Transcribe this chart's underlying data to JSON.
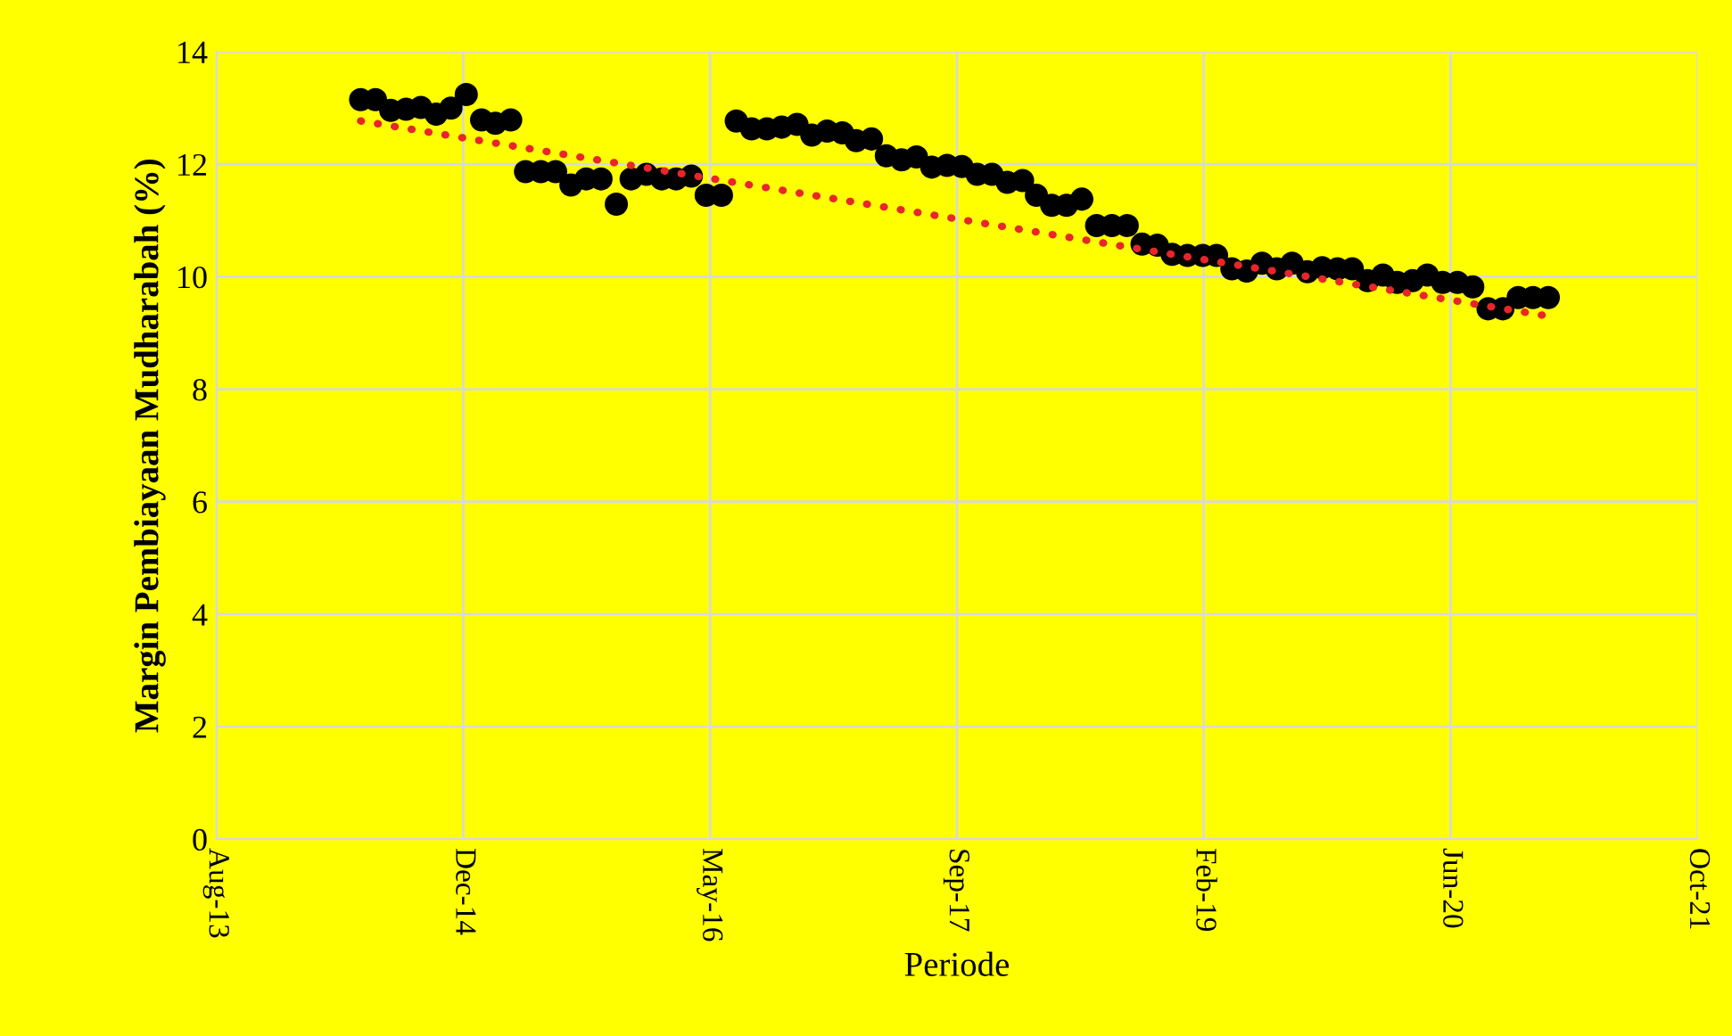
{
  "chart_data": {
    "type": "scatter",
    "xlabel": "Periode",
    "ylabel": "Margin Pembiayaan Mudharabah (%)",
    "x": [
      "2014-05-31",
      "2014-06-30",
      "2014-07-31",
      "2014-08-31",
      "2014-09-30",
      "2014-10-31",
      "2014-11-30",
      "2014-12-31",
      "2015-01-31",
      "2015-02-28",
      "2015-03-31",
      "2015-04-30",
      "2015-05-31",
      "2015-06-30",
      "2015-07-31",
      "2015-08-31",
      "2015-09-30",
      "2015-10-31",
      "2015-11-30",
      "2015-12-31",
      "2016-01-31",
      "2016-02-29",
      "2016-03-31",
      "2016-04-30",
      "2016-05-31",
      "2016-06-30",
      "2016-07-31",
      "2016-08-31",
      "2016-09-30",
      "2016-10-31",
      "2016-11-30",
      "2016-12-31",
      "2017-01-31",
      "2017-02-28",
      "2017-03-31",
      "2017-04-30",
      "2017-05-31",
      "2017-06-30",
      "2017-07-31",
      "2017-08-31",
      "2017-09-30",
      "2017-10-31",
      "2017-11-30",
      "2017-12-31",
      "2018-01-31",
      "2018-02-28",
      "2018-03-31",
      "2018-04-30",
      "2018-05-31",
      "2018-06-30",
      "2018-07-31",
      "2018-08-31",
      "2018-09-30",
      "2018-10-31",
      "2018-11-30",
      "2018-12-31",
      "2019-01-31",
      "2019-02-28",
      "2019-03-31",
      "2019-04-30",
      "2019-05-31",
      "2019-06-30",
      "2019-07-31",
      "2019-08-31",
      "2019-09-30",
      "2019-10-31",
      "2019-11-30",
      "2019-12-31",
      "2020-01-31",
      "2020-02-29",
      "2020-03-31",
      "2020-04-30",
      "2020-05-31",
      "2020-06-30",
      "2020-07-31",
      "2020-08-31",
      "2020-09-30",
      "2020-10-31",
      "2020-11-30",
      "2020-12-31"
    ],
    "series": [
      {
        "color": "#000000",
        "marker": "circle",
        "values": [
          13.15,
          13.15,
          12.96,
          12.98,
          13.01,
          12.89,
          13.0,
          13.24,
          12.79,
          12.73,
          12.79,
          11.87,
          11.87,
          11.87,
          11.63,
          11.74,
          11.74,
          11.29,
          11.74,
          11.82,
          11.74,
          11.74,
          11.79,
          11.45,
          11.45,
          12.77,
          12.63,
          12.63,
          12.66,
          12.71,
          12.52,
          12.59,
          12.56,
          12.42,
          12.45,
          12.15,
          12.08,
          12.13,
          11.95,
          11.98,
          11.96,
          11.82,
          11.82,
          11.68,
          11.71,
          11.45,
          11.27,
          11.27,
          11.38,
          10.91,
          10.91,
          10.91,
          10.58,
          10.56,
          10.4,
          10.38,
          10.38,
          10.38,
          10.14,
          10.1,
          10.24,
          10.14,
          10.24,
          10.09,
          10.16,
          10.14,
          10.14,
          9.93,
          10.03,
          9.9,
          9.93,
          10.03,
          9.9,
          9.9,
          9.82,
          9.43,
          9.43,
          9.63,
          9.63,
          9.63
        ]
      },
      {
        "type": "line",
        "color": "#e8262a",
        "line_style": "dotted",
        "x": [
          "2014-05-31",
          "2020-12-31"
        ],
        "values": [
          12.77,
          9.3
        ]
      }
    ],
    "xlim": [
      "2013-08-12",
      "2021-10-29"
    ],
    "xticks": [
      {
        "value": "2013-08-12",
        "label": "Aug-13"
      },
      {
        "value": "2014-12-25",
        "label": "Dec-14"
      },
      {
        "value": "2016-05-08",
        "label": "May-16"
      },
      {
        "value": "2017-09-20",
        "label": "Sep-17"
      },
      {
        "value": "2019-02-02",
        "label": "Feb-19"
      },
      {
        "value": "2020-06-16",
        "label": "Jun-20"
      },
      {
        "value": "2021-10-29",
        "label": "Oct-21"
      }
    ],
    "ylim": [
      0,
      14
    ],
    "yticks": [
      0,
      2,
      4,
      6,
      8,
      10,
      12,
      14
    ],
    "grid": true
  }
}
